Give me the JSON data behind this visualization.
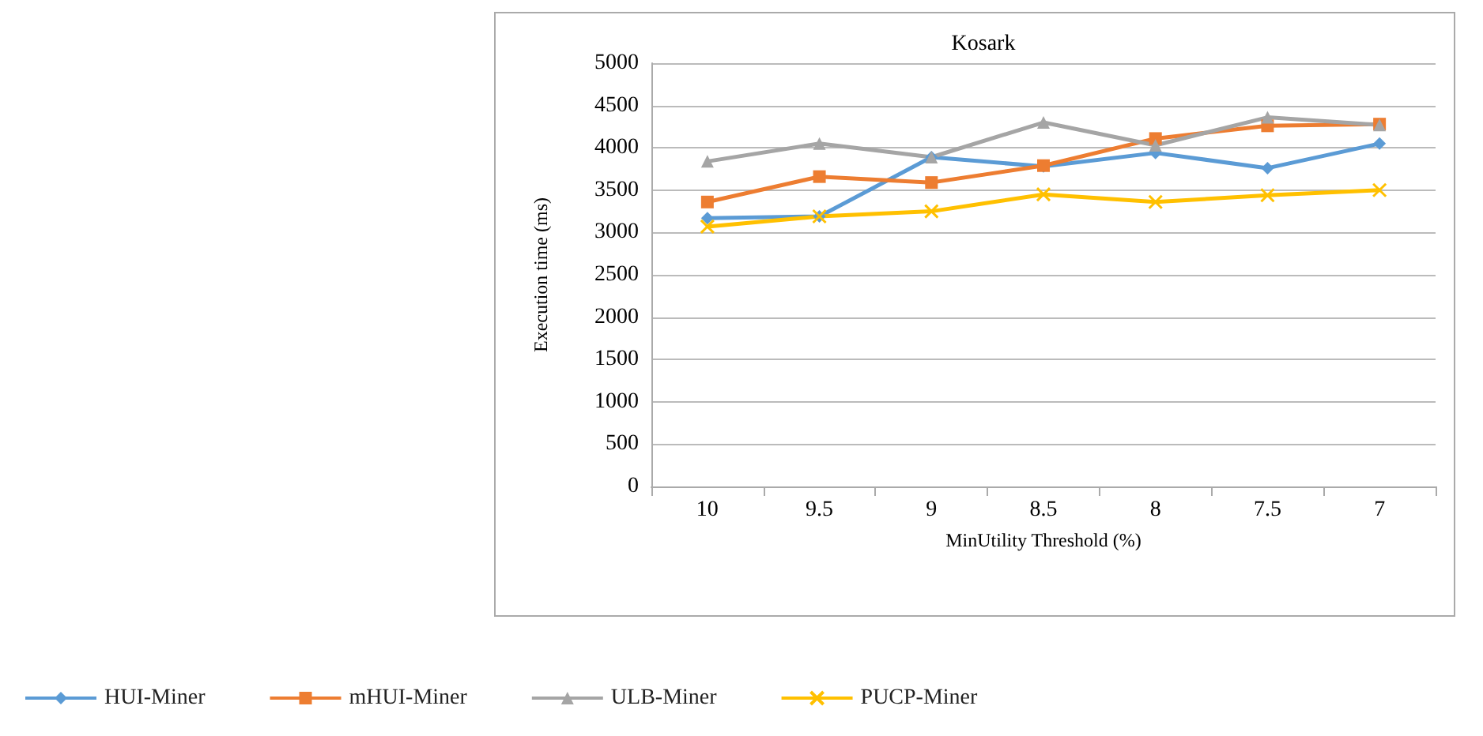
{
  "chart_data": {
    "type": "line",
    "title": "Kosark",
    "xlabel": "MinUtility Threshold (%)",
    "ylabel": "Execution time (ms)",
    "categories": [
      "10",
      "9.5",
      "9",
      "8.5",
      "8",
      "7.5",
      "7"
    ],
    "series": [
      {
        "name": "HUI-Miner",
        "color": "#5b9bd5",
        "marker": "diamond",
        "values": [
          3170,
          3190,
          3890,
          3780,
          3940,
          3760,
          4050
        ]
      },
      {
        "name": "mHUI-Miner",
        "color": "#ed7d31",
        "marker": "square",
        "values": [
          3360,
          3660,
          3590,
          3790,
          4110,
          4260,
          4280
        ]
      },
      {
        "name": "ULB-Miner",
        "color": "#a5a5a5",
        "marker": "triangle",
        "values": [
          3840,
          4050,
          3890,
          4300,
          4030,
          4360,
          4270
        ]
      },
      {
        "name": "PUCP-Miner",
        "color": "#ffc000",
        "marker": "cross",
        "values": [
          3070,
          3190,
          3250,
          3450,
          3360,
          3440,
          3500
        ]
      }
    ],
    "ylim": [
      0,
      5000
    ],
    "yticks": [
      0,
      500,
      1000,
      1500,
      2000,
      2500,
      3000,
      3500,
      4000,
      4500,
      5000
    ],
    "grid": "y",
    "legend": "bottom left"
  }
}
